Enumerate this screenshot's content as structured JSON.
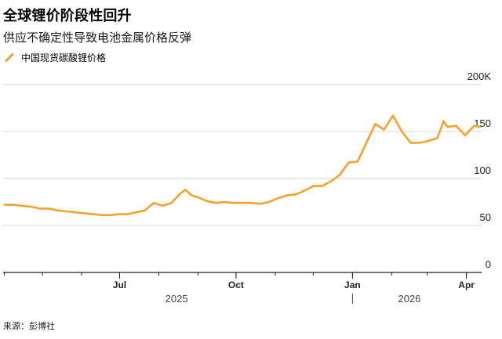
{
  "title": "全球锂价阶段性回升",
  "subtitle": "供应不确定性导致电池金属价格反弹",
  "legend": {
    "label": "中国现货碳酸锂价格",
    "color": "#f5a12d"
  },
  "source": "来源：彭博社",
  "chart_data": {
    "type": "line",
    "title": "全球锂价阶段性回升",
    "subtitle": "供应不确定性导致电池金属价格反弹",
    "y_unit_label": "200K",
    "ylim": [
      0,
      200
    ],
    "yticks": [
      {
        "value": 0,
        "label": "0"
      },
      {
        "value": 50,
        "label": "50"
      },
      {
        "value": 100,
        "label": "100"
      },
      {
        "value": 150,
        "label": "150"
      },
      {
        "value": 200,
        "label": "200K"
      }
    ],
    "xlim": [
      "2025-03-31",
      "2026-04-13"
    ],
    "xticks": [
      {
        "date": "2025-07-01",
        "label": "Jul"
      },
      {
        "date": "2025-10-01",
        "label": "Oct"
      },
      {
        "date": "2026-01-01",
        "label": "Jan"
      },
      {
        "date": "2026-04-01",
        "label": "Apr"
      }
    ],
    "year_labels": [
      {
        "label": "2025",
        "date": "2025-08-15"
      },
      {
        "label": "2026",
        "date": "2026-02-15"
      }
    ],
    "grid": true,
    "series": [
      {
        "name": "中国现货碳酸锂价格",
        "color": "#f5a12d",
        "points": [
          [
            "2025-04-01",
            72
          ],
          [
            "2025-04-08",
            72
          ],
          [
            "2025-04-15",
            71
          ],
          [
            "2025-04-22",
            70
          ],
          [
            "2025-04-29",
            68
          ],
          [
            "2025-05-06",
            68
          ],
          [
            "2025-05-13",
            66
          ],
          [
            "2025-05-20",
            65
          ],
          [
            "2025-05-27",
            64
          ],
          [
            "2025-06-03",
            63
          ],
          [
            "2025-06-10",
            62
          ],
          [
            "2025-06-17",
            61
          ],
          [
            "2025-06-24",
            61
          ],
          [
            "2025-06-30",
            62
          ],
          [
            "2025-07-07",
            62
          ],
          [
            "2025-07-14",
            64
          ],
          [
            "2025-07-21",
            66
          ],
          [
            "2025-07-28",
            74
          ],
          [
            "2025-08-04",
            71
          ],
          [
            "2025-08-11",
            74
          ],
          [
            "2025-08-18",
            84
          ],
          [
            "2025-08-22",
            88
          ],
          [
            "2025-08-27",
            82
          ],
          [
            "2025-09-01",
            80
          ],
          [
            "2025-09-08",
            76
          ],
          [
            "2025-09-15",
            74
          ],
          [
            "2025-09-22",
            75
          ],
          [
            "2025-09-29",
            74
          ],
          [
            "2025-10-06",
            74
          ],
          [
            "2025-10-13",
            74
          ],
          [
            "2025-10-20",
            73
          ],
          [
            "2025-10-27",
            75
          ],
          [
            "2025-11-03",
            79
          ],
          [
            "2025-11-10",
            82
          ],
          [
            "2025-11-17",
            83
          ],
          [
            "2025-11-24",
            87
          ],
          [
            "2025-12-01",
            92
          ],
          [
            "2025-12-08",
            92
          ],
          [
            "2025-12-15",
            97
          ],
          [
            "2025-12-22",
            104
          ],
          [
            "2025-12-29",
            117
          ],
          [
            "2026-01-05",
            118
          ],
          [
            "2026-01-12",
            138
          ],
          [
            "2026-01-19",
            158
          ],
          [
            "2026-01-26",
            152
          ],
          [
            "2026-02-02",
            167
          ],
          [
            "2026-02-09",
            150
          ],
          [
            "2026-02-16",
            138
          ],
          [
            "2026-02-23",
            138
          ],
          [
            "2026-03-02",
            140
          ],
          [
            "2026-03-09",
            143
          ],
          [
            "2026-03-14",
            161
          ],
          [
            "2026-03-17",
            155
          ],
          [
            "2026-03-24",
            156
          ],
          [
            "2026-03-31",
            146
          ],
          [
            "2026-04-07",
            156
          ],
          [
            "2026-04-12",
            155
          ]
        ]
      }
    ]
  }
}
